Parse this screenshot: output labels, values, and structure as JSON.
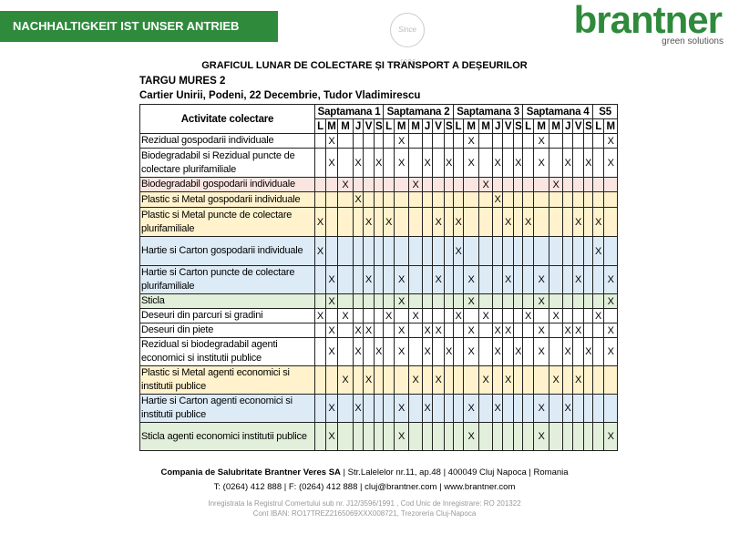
{
  "header": {
    "banner": "NACHHALTIGKEIT IST UNSER ANTRIEB",
    "stamp": "Since 1936",
    "logo": "brantner",
    "tagline": "green solutions"
  },
  "title": "GRAFICUL LUNAR DE COLECTARE ȘI TRANSPORT A DEȘEURILOR",
  "city": "TARGU MURES 2",
  "area": "Cartier Unirii, Podeni, 22 Decembrie, Tudor Vladimirescu",
  "table": {
    "first_header": "Activitate colectare",
    "weeks": [
      {
        "label": "Saptamana 1",
        "days": [
          "L",
          "M",
          "M",
          "J",
          "V",
          "S"
        ]
      },
      {
        "label": "Saptamana 2",
        "days": [
          "L",
          "M",
          "M",
          "J",
          "V",
          "S"
        ]
      },
      {
        "label": "Saptamana 3",
        "days": [
          "L",
          "M",
          "M",
          "J",
          "V",
          "S"
        ]
      },
      {
        "label": "Saptamana 4",
        "days": [
          "L",
          "M",
          "M",
          "J",
          "V",
          "S"
        ]
      },
      {
        "label": "S5",
        "days": [
          "L",
          "M"
        ]
      }
    ],
    "rows": [
      {
        "activity": "Rezidual gospodarii individuale",
        "color": "#ffffff",
        "cells": [
          null,
          "X",
          null,
          null,
          null,
          null,
          null,
          "X",
          null,
          null,
          null,
          null,
          null,
          "X",
          null,
          null,
          null,
          null,
          null,
          "X",
          null,
          null,
          null,
          null,
          null,
          "X"
        ]
      },
      {
        "activity": "Biodegradabil si Rezidual puncte de colectare plurifamiliale",
        "color": "#ffffff",
        "cells": [
          null,
          "X",
          null,
          "X",
          null,
          "X",
          null,
          "X",
          null,
          "X",
          null,
          "X",
          null,
          "X",
          null,
          "X",
          null,
          "X",
          null,
          "X",
          null,
          "X",
          null,
          "X",
          null,
          "X"
        ]
      },
      {
        "activity": "Biodegradabil gospodarii individuale",
        "color": "#fbe5e1",
        "cells": [
          null,
          null,
          "X",
          null,
          null,
          null,
          null,
          null,
          "X",
          null,
          null,
          null,
          null,
          null,
          "X",
          null,
          null,
          null,
          null,
          null,
          "X",
          null,
          null,
          null,
          null,
          null
        ]
      },
      {
        "activity": "Plastic si Metal gospodarii individuale",
        "color": "#fff2cc",
        "cells": [
          null,
          null,
          null,
          "X",
          null,
          null,
          null,
          null,
          null,
          null,
          null,
          null,
          null,
          null,
          null,
          "X",
          null,
          null,
          null,
          null,
          null,
          null,
          null,
          null,
          null,
          null
        ]
      },
      {
        "activity": "Plastic si Metal puncte de colectare plurifamiliale",
        "color": "#fff2cc",
        "cells": [
          "X",
          null,
          null,
          null,
          "X",
          null,
          "X",
          null,
          null,
          null,
          "X",
          null,
          "X",
          null,
          null,
          null,
          "X",
          null,
          "X",
          null,
          null,
          null,
          "X",
          null,
          "X",
          null
        ]
      },
      {
        "activity": "Hartie si Carton gospodarii individuale",
        "color": "#ddebf7",
        "cells": [
          "X",
          null,
          null,
          null,
          null,
          null,
          null,
          null,
          null,
          null,
          null,
          null,
          "X",
          null,
          null,
          null,
          null,
          null,
          null,
          null,
          null,
          null,
          null,
          null,
          "X",
          null
        ]
      },
      {
        "activity": "Hartie si Carton puncte de colectare plurifamiliale",
        "color": "#ddebf7",
        "cells": [
          null,
          "X",
          null,
          null,
          "X",
          null,
          null,
          "X",
          null,
          null,
          "X",
          null,
          null,
          "X",
          null,
          null,
          "X",
          null,
          null,
          "X",
          null,
          null,
          "X",
          null,
          null,
          "X"
        ]
      },
      {
        "activity": "Sticla",
        "color": "#e2efda",
        "cells": [
          null,
          "X",
          null,
          null,
          null,
          null,
          null,
          "X",
          null,
          null,
          null,
          null,
          null,
          "X",
          null,
          null,
          null,
          null,
          null,
          "X",
          null,
          null,
          null,
          null,
          null,
          "X"
        ]
      },
      {
        "activity": "Deseuri din parcuri si gradini",
        "color": "#ffffff",
        "cells": [
          "X",
          null,
          "X",
          null,
          null,
          null,
          "X",
          null,
          "X",
          null,
          null,
          null,
          "X",
          null,
          "X",
          null,
          null,
          null,
          "X",
          null,
          "X",
          null,
          null,
          null,
          "X",
          null
        ]
      },
      {
        "activity": "Deseuri din piete",
        "color": "#ffffff",
        "cells": [
          null,
          "X",
          null,
          "X",
          "X",
          null,
          null,
          "X",
          null,
          "X",
          "X",
          null,
          null,
          "X",
          null,
          "X",
          "X",
          null,
          null,
          "X",
          null,
          "X",
          "X",
          null,
          null,
          "X"
        ]
      },
      {
        "activity": "Rezidual si biodegradabil agenti economici si institutii publice",
        "color": "#ffffff",
        "cells": [
          null,
          "X",
          null,
          "X",
          null,
          "X",
          null,
          "X",
          null,
          "X",
          null,
          "X",
          null,
          "X",
          null,
          "X",
          null,
          "X",
          null,
          "X",
          null,
          "X",
          null,
          "X",
          null,
          "X"
        ]
      },
      {
        "activity": "Plastic si Metal agenti economici si institutii publice",
        "color": "#fff2cc",
        "cells": [
          null,
          null,
          "X",
          null,
          "X",
          null,
          null,
          null,
          "X",
          null,
          "X",
          null,
          null,
          null,
          "X",
          null,
          "X",
          null,
          null,
          null,
          "X",
          null,
          "X",
          null,
          null,
          null
        ]
      },
      {
        "activity": "Hartie si Carton agenti economici si institutii publice",
        "color": "#ddebf7",
        "cells": [
          null,
          "X",
          null,
          "X",
          null,
          null,
          null,
          "X",
          null,
          "X",
          null,
          null,
          null,
          "X",
          null,
          "X",
          null,
          null,
          null,
          "X",
          null,
          "X",
          null,
          null,
          null,
          null
        ]
      },
      {
        "activity": "Sticla agenti economici institutii publice",
        "color": "#e2efda",
        "cells": [
          null,
          "X",
          null,
          null,
          null,
          null,
          null,
          "X",
          null,
          null,
          null,
          null,
          null,
          "X",
          null,
          null,
          null,
          null,
          null,
          "X",
          null,
          null,
          null,
          null,
          null,
          "X"
        ]
      }
    ]
  },
  "footer": {
    "company": "Compania de Salubritate Brantner Veres SA",
    "address": "| Str.Lalelelor nr.11, ap.48 | 400049 Cluj Napoca | Romania",
    "contact": "T: (0264) 412 888 | F: (0264) 412 888 | cluj@brantner.com | www.brantner.com",
    "registry": "Inregistrata la Registrul Comertului sub nr. J12/3596/1991 , Cod Unic de Inregistrare: RO 201322",
    "bank": "Cont IBAN: RO17TREZ2165069XXX008721, Trezoreria Cluj-Napoca"
  }
}
